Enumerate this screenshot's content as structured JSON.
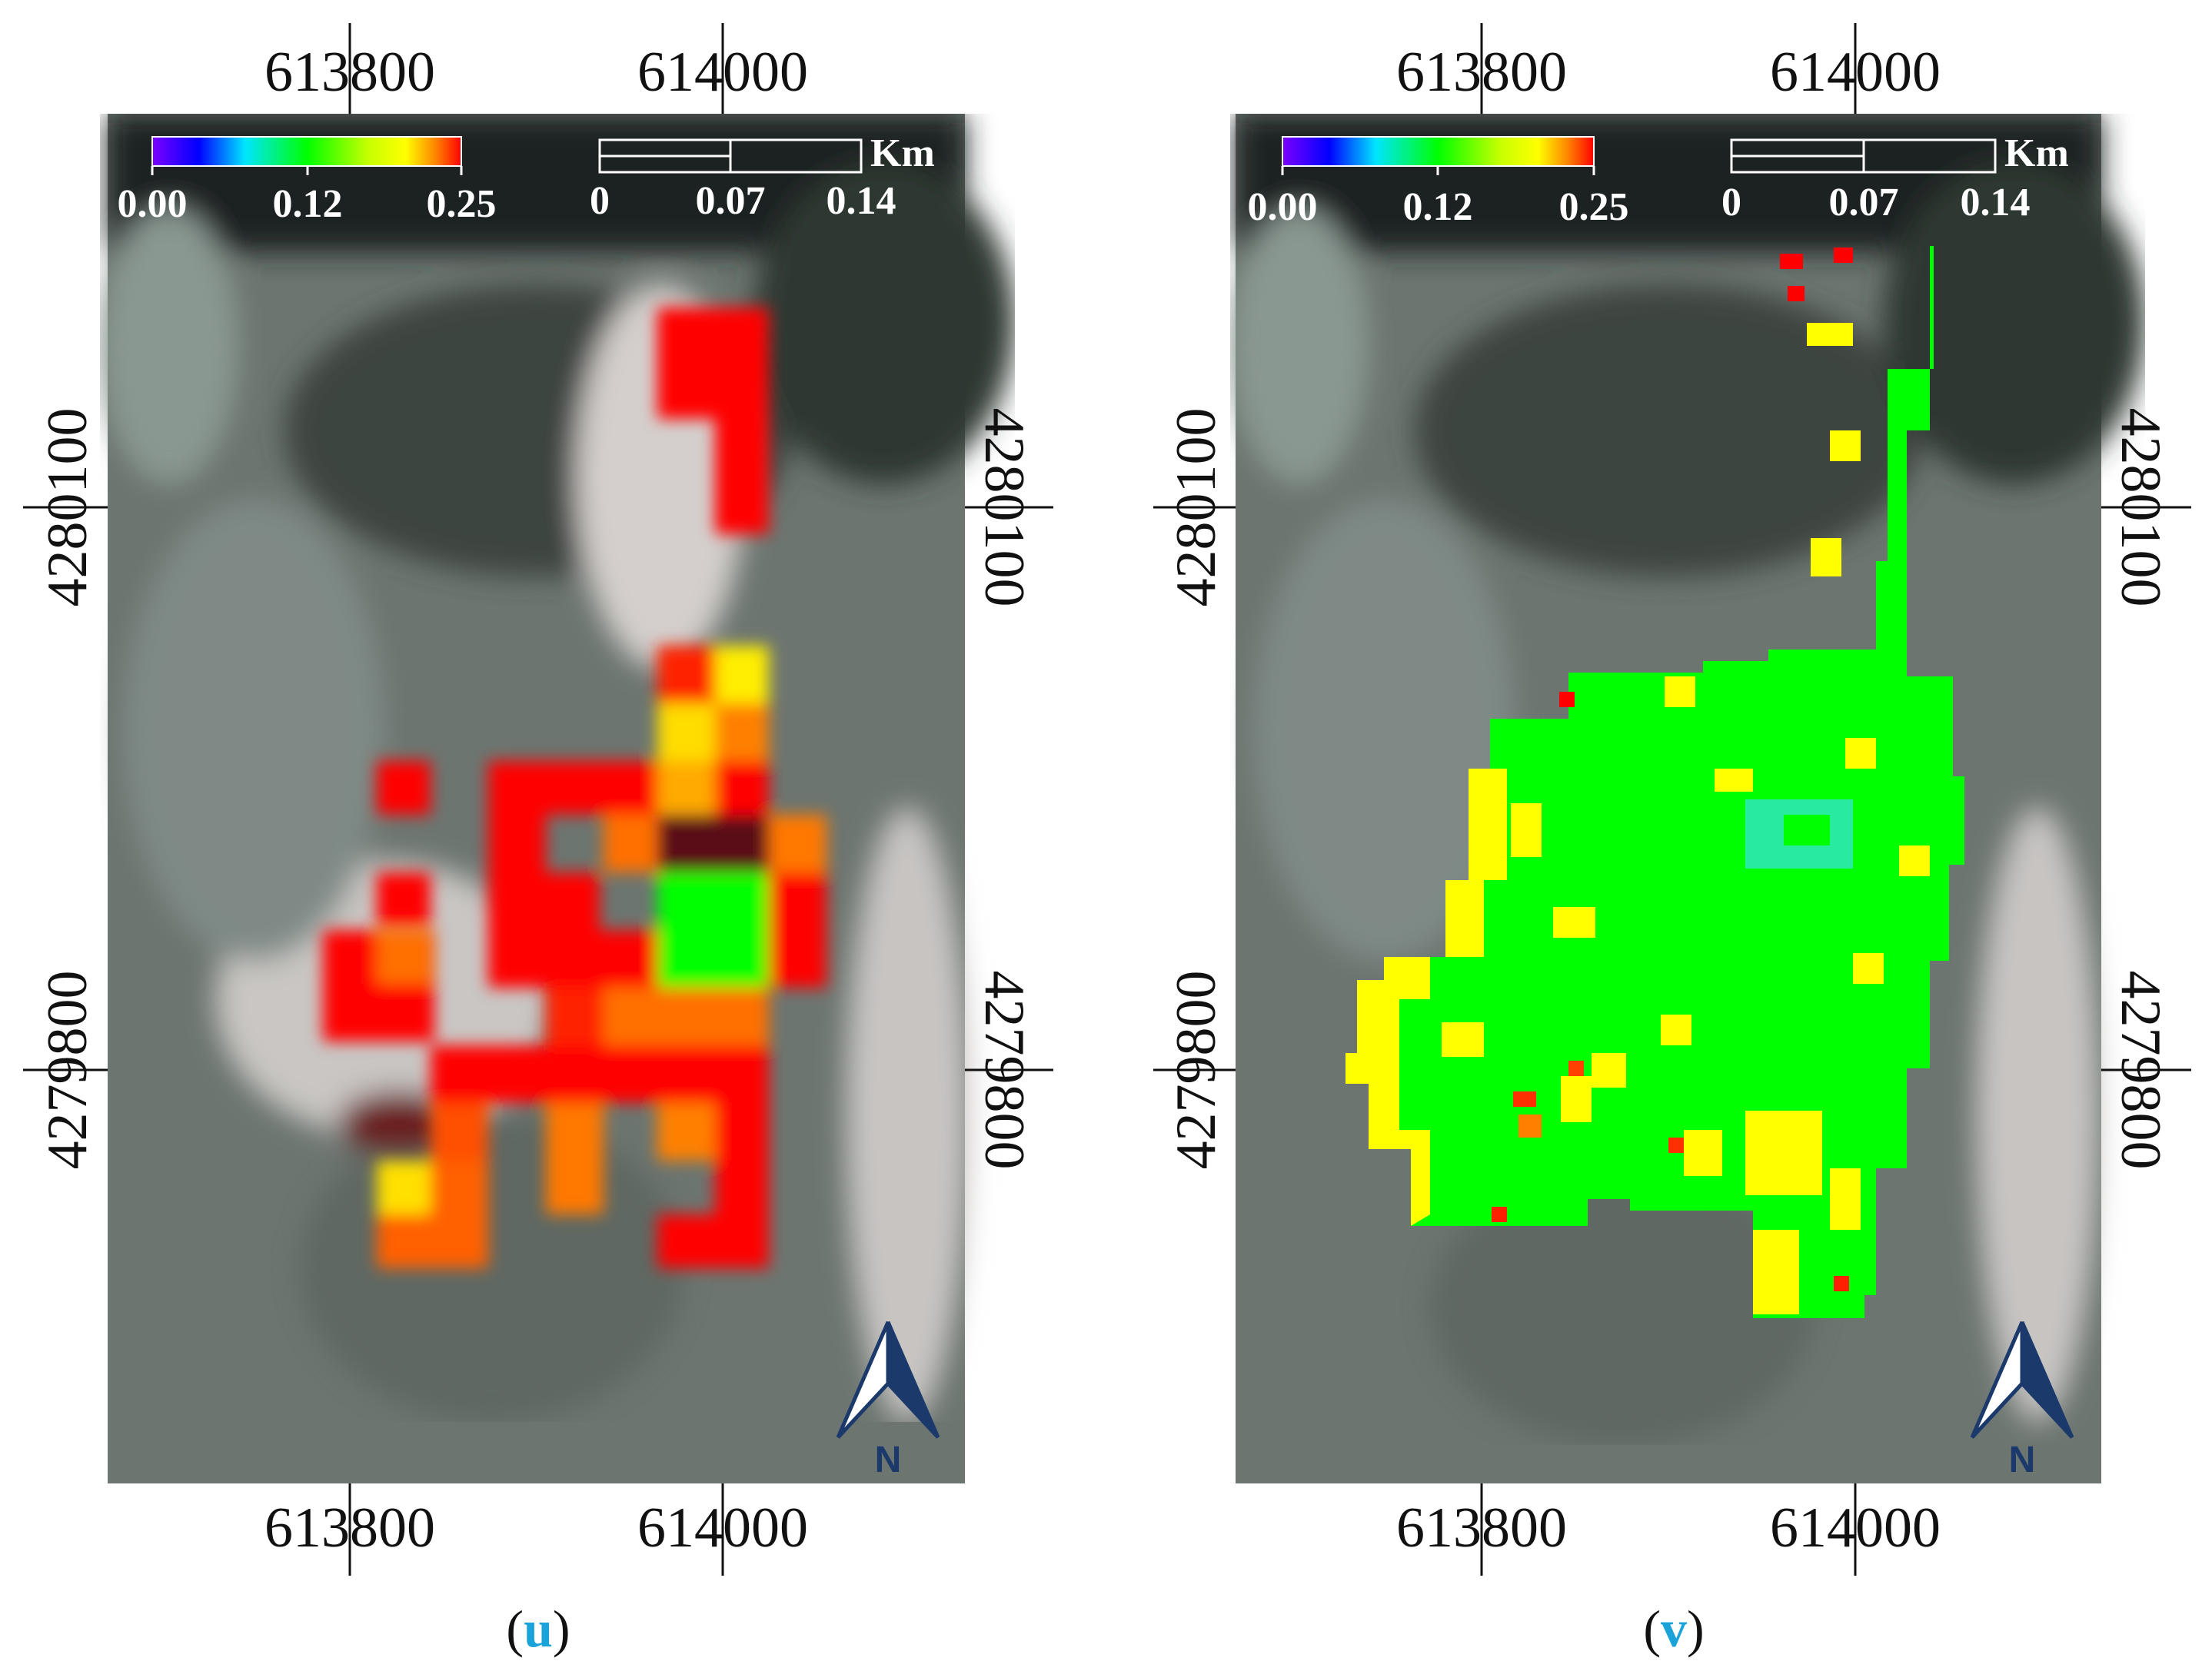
{
  "panels": [
    {
      "id": "u",
      "caption_letter": "u",
      "x_ticks": [
        "613800",
        "614000"
      ],
      "y_ticks": [
        "4280100",
        "4279800"
      ],
      "colorbar": {
        "ticks": [
          "0.00",
          "0.12",
          "0.25"
        ]
      },
      "scalebar": {
        "ticks": [
          "0",
          "0.07",
          "0.14"
        ],
        "unit": "Km"
      },
      "north_label": "N"
    },
    {
      "id": "v",
      "caption_letter": "v",
      "x_ticks": [
        "613800",
        "614000"
      ],
      "y_ticks": [
        "4280100",
        "4279800"
      ],
      "colorbar": {
        "ticks": [
          "0.00",
          "0.12",
          "0.25"
        ]
      },
      "scalebar": {
        "ticks": [
          "0",
          "0.07",
          "0.14"
        ],
        "unit": "Km"
      },
      "north_label": "N"
    }
  ],
  "colors": {
    "overlay_red": "#ff0000",
    "overlay_orange": "#ff7f00",
    "overlay_yellow": "#ffff00",
    "overlay_green": "#00ff00",
    "overlay_cyan": "#33e6c8",
    "north_arrow": "#1b3a6b"
  }
}
